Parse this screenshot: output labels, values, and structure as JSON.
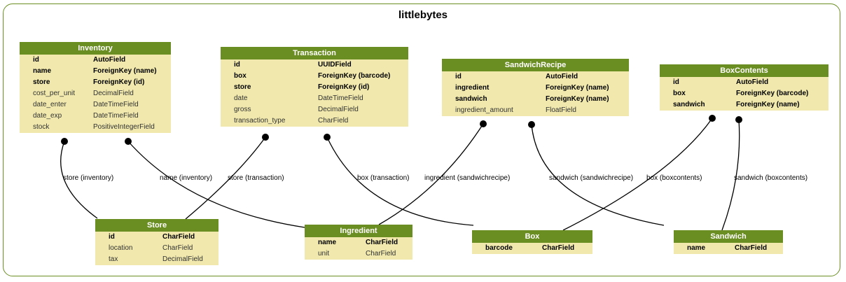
{
  "title": "littlebytes",
  "tables": [
    {
      "id": "inventory",
      "name": "Inventory",
      "fields": [
        {
          "name": "id",
          "type": "AutoField",
          "bold": true
        },
        {
          "name": "name",
          "type": "ForeignKey (name)",
          "bold": true
        },
        {
          "name": "store",
          "type": "ForeignKey (id)",
          "bold": true
        },
        {
          "name": "cost_per_unit",
          "type": "DecimalField",
          "bold": false
        },
        {
          "name": "date_enter",
          "type": "DateTimeField",
          "bold": false
        },
        {
          "name": "date_exp",
          "type": "DateTimeField",
          "bold": false
        },
        {
          "name": "stock",
          "type": "PositiveIntegerField",
          "bold": false
        }
      ]
    },
    {
      "id": "transaction",
      "name": "Transaction",
      "fields": [
        {
          "name": "id",
          "type": "UUIDField",
          "bold": true
        },
        {
          "name": "box",
          "type": "ForeignKey (barcode)",
          "bold": true
        },
        {
          "name": "store",
          "type": "ForeignKey (id)",
          "bold": true
        },
        {
          "name": "date",
          "type": "DateTimeField",
          "bold": false
        },
        {
          "name": "gross",
          "type": "DecimalField",
          "bold": false
        },
        {
          "name": "transaction_type",
          "type": "CharField",
          "bold": false
        }
      ]
    },
    {
      "id": "sandwichrecipe",
      "name": "SandwichRecipe",
      "fields": [
        {
          "name": "id",
          "type": "AutoField",
          "bold": true
        },
        {
          "name": "ingredient",
          "type": "ForeignKey (name)",
          "bold": true
        },
        {
          "name": "sandwich",
          "type": "ForeignKey (name)",
          "bold": true
        },
        {
          "name": "ingredient_amount",
          "type": "FloatField",
          "bold": false
        }
      ]
    },
    {
      "id": "boxcontents",
      "name": "BoxContents",
      "fields": [
        {
          "name": "id",
          "type": "AutoField",
          "bold": true
        },
        {
          "name": "box",
          "type": "ForeignKey (barcode)",
          "bold": true
        },
        {
          "name": "sandwich",
          "type": "ForeignKey (name)",
          "bold": true
        }
      ]
    },
    {
      "id": "store",
      "name": "Store",
      "fields": [
        {
          "name": "id",
          "type": "CharField",
          "bold": true
        },
        {
          "name": "location",
          "type": "CharField",
          "bold": false
        },
        {
          "name": "tax",
          "type": "DecimalField",
          "bold": false
        }
      ]
    },
    {
      "id": "ingredient",
      "name": "Ingredient",
      "fields": [
        {
          "name": "name",
          "type": "CharField",
          "bold": true
        },
        {
          "name": "unit",
          "type": "CharField",
          "bold": false
        }
      ]
    },
    {
      "id": "box",
      "name": "Box",
      "fields": [
        {
          "name": "barcode",
          "type": "CharField",
          "bold": true
        }
      ]
    },
    {
      "id": "sandwich",
      "name": "Sandwich",
      "fields": [
        {
          "name": "name",
          "type": "CharField",
          "bold": true
        }
      ]
    }
  ],
  "relations": [
    {
      "id": "inventory-store",
      "from": "inventory",
      "to": "store",
      "label": "store (inventory)"
    },
    {
      "id": "inventory-ingredient",
      "from": "inventory",
      "to": "ingredient",
      "label": "name (inventory)"
    },
    {
      "id": "transaction-store",
      "from": "transaction",
      "to": "store",
      "label": "store (transaction)"
    },
    {
      "id": "transaction-box",
      "from": "transaction",
      "to": "box",
      "label": "box (transaction)"
    },
    {
      "id": "sandwichrecipe-ingredient",
      "from": "sandwichrecipe",
      "to": "ingredient",
      "label": "ingredient (sandwichrecipe)"
    },
    {
      "id": "sandwichrecipe-sandwich",
      "from": "sandwichrecipe",
      "to": "sandwich",
      "label": "sandwich (sandwichrecipe)"
    },
    {
      "id": "boxcontents-box",
      "from": "boxcontents",
      "to": "box",
      "label": "box (boxcontents)"
    },
    {
      "id": "boxcontents-sandwich",
      "from": "boxcontents",
      "to": "sandwich",
      "label": "sandwich (boxcontents)"
    }
  ]
}
